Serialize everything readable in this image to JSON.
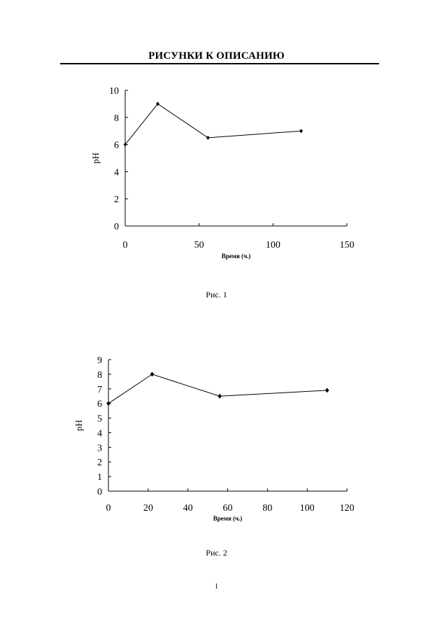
{
  "header": {
    "title": "РИСУНКИ К ОПИСАНИЮ"
  },
  "chart_data": [
    {
      "type": "line",
      "ylabel": "pH",
      "xlabel": "Время (ч.)",
      "caption": "Рис. 1",
      "xlim": [
        0,
        150
      ],
      "ylim": [
        0,
        10
      ],
      "x_ticks": [
        0,
        50,
        100,
        150
      ],
      "y_ticks": [
        0,
        2,
        4,
        6,
        8,
        10
      ],
      "series": [
        {
          "name": "pH",
          "x": [
            0,
            22,
            56,
            119
          ],
          "values": [
            6,
            9,
            6.5,
            7
          ]
        }
      ]
    },
    {
      "type": "line",
      "ylabel": "pH",
      "xlabel": "Время (ч.)",
      "caption": "Рис. 2",
      "xlim": [
        0,
        120
      ],
      "ylim": [
        0,
        9
      ],
      "x_ticks": [
        0,
        20,
        40,
        60,
        80,
        100,
        120
      ],
      "y_ticks": [
        0,
        1,
        2,
        3,
        4,
        5,
        6,
        7,
        8,
        9
      ],
      "series": [
        {
          "name": "pH",
          "x": [
            0,
            22,
            56,
            110
          ],
          "values": [
            6,
            8,
            6.5,
            6.9
          ]
        }
      ]
    }
  ],
  "footer": {
    "page_number": "1"
  }
}
